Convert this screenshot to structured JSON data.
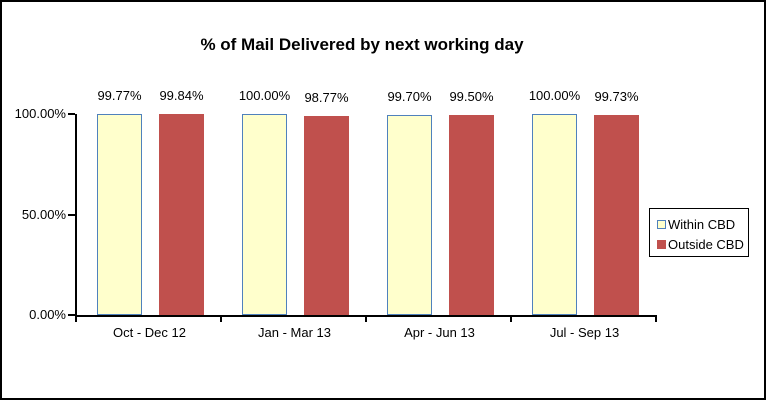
{
  "window": {
    "background": "#FFFFFF",
    "border_color": "#000000"
  },
  "chart_data": {
    "type": "bar",
    "title": "% of Mail Delivered by next working day",
    "categories": [
      "Oct - Dec 12",
      "Jan - Mar 13",
      "Apr - Jun 13",
      "Jul - Sep 13"
    ],
    "series": [
      {
        "name": "Within CBD",
        "values": [
          99.77,
          100.0,
          99.7,
          100.0
        ],
        "data_labels": [
          "99.77%",
          "100.00%",
          "99.70%",
          "100.00%"
        ],
        "fill": "#FFFFCC",
        "border_color": "#4F81BD"
      },
      {
        "name": "Outside CBD",
        "values": [
          99.84,
          98.77,
          99.5,
          99.73
        ],
        "data_labels": [
          "99.84%",
          "98.77%",
          "99.50%",
          "99.73%"
        ],
        "fill": "#C0504D",
        "border_color": "#C0504D"
      }
    ],
    "xlabel": "",
    "ylabel": "",
    "ylim": [
      0,
      100
    ],
    "yticks": [
      0,
      50,
      100
    ],
    "ytick_labels": [
      "0.00%",
      "50.00%",
      "100.00%"
    ],
    "grid": false,
    "data_labels": true,
    "legend_position": "right",
    "legend_entries": [
      "Within CBD",
      "Outside CBD"
    ],
    "axis_color": "#000000",
    "text_color": "#000000"
  }
}
